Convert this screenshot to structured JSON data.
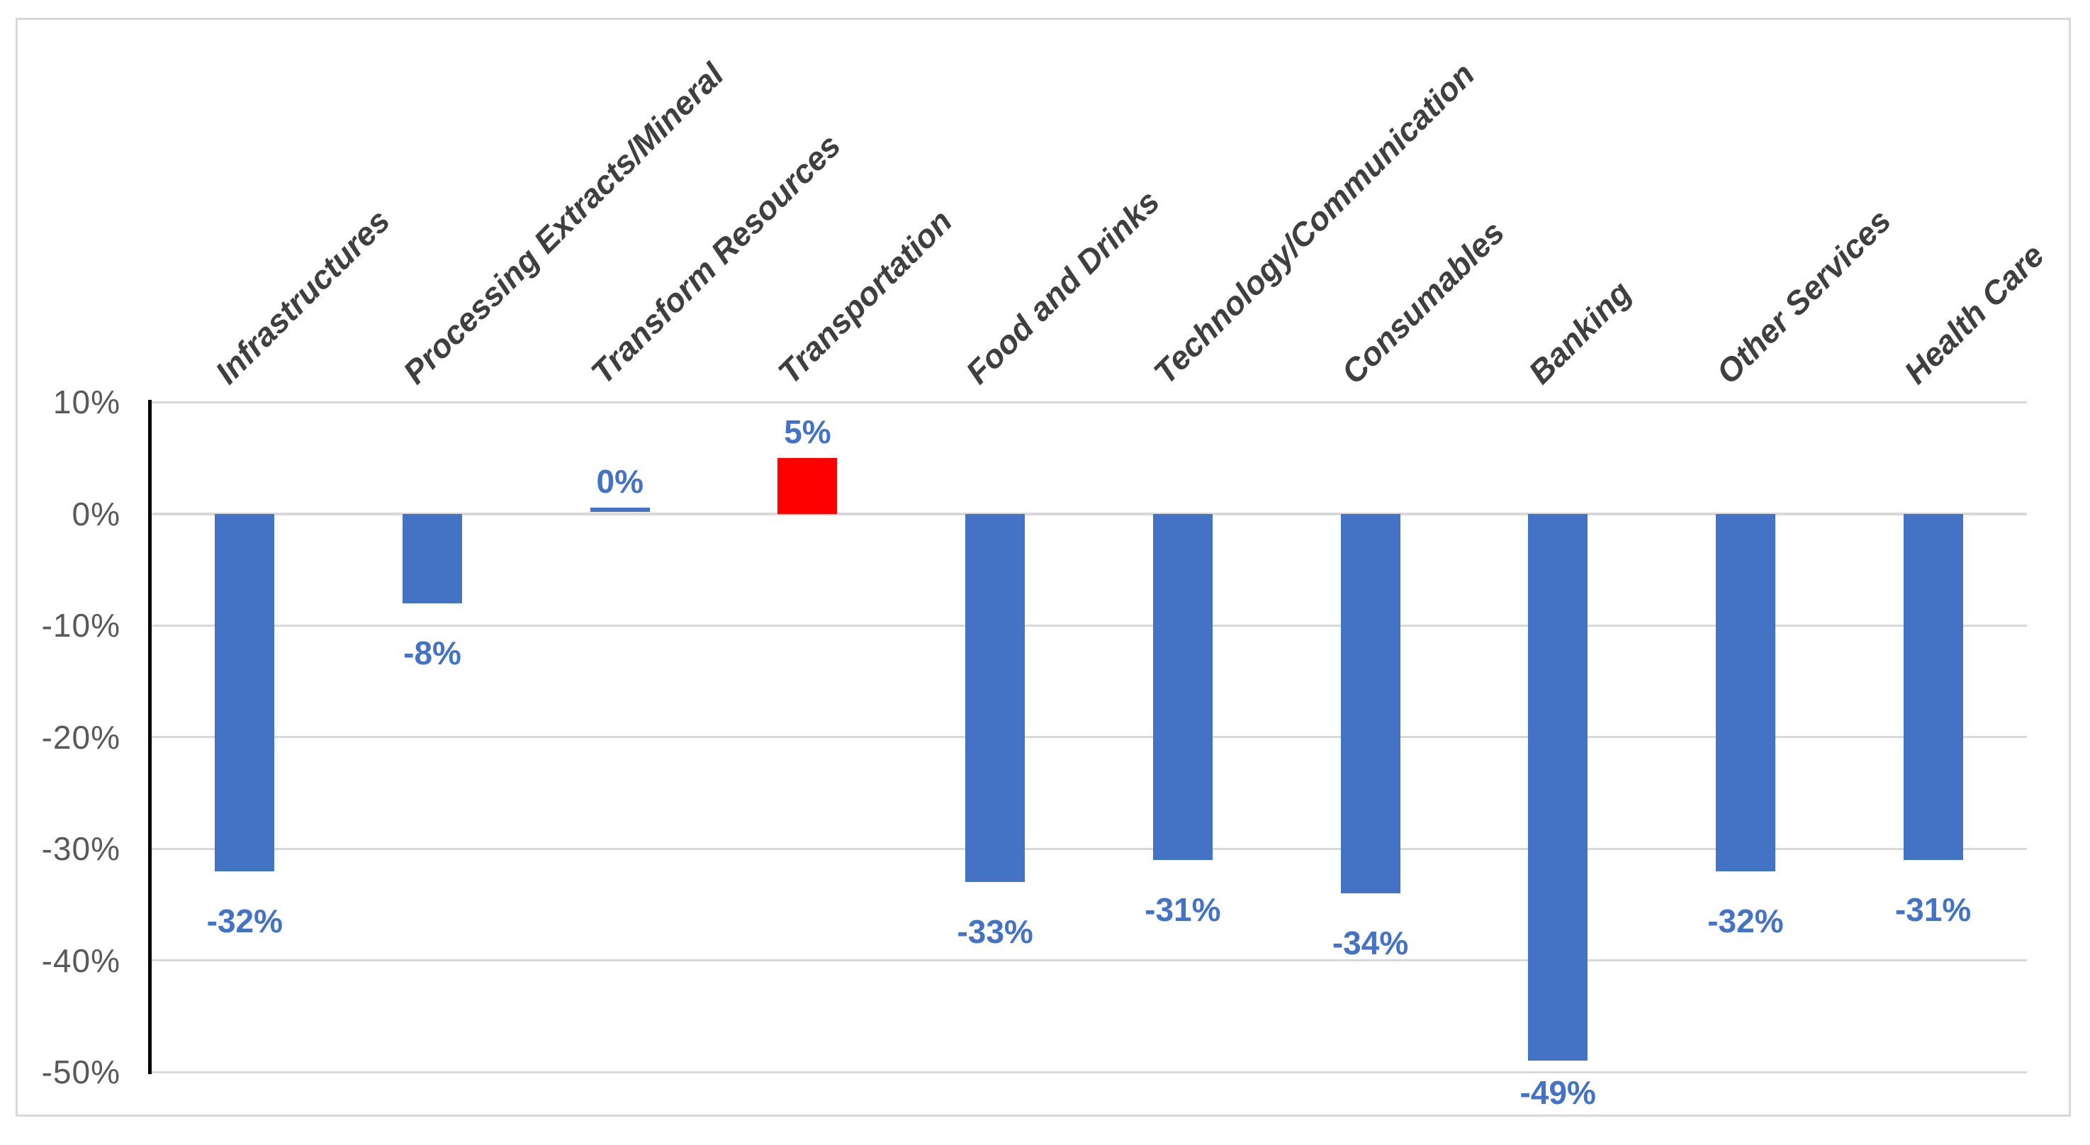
{
  "chart_data": {
    "type": "bar",
    "title": "",
    "xlabel": "",
    "ylabel": "",
    "categories": [
      "Infrastructures",
      "Processing Extracts/Mineral",
      "Transform Resources",
      "Transportation",
      "Food and Drinks",
      "Technology/Communication",
      "Consumables",
      "Banking",
      "Other Services",
      "Health Care"
    ],
    "values": [
      -32,
      -8,
      0,
      5,
      -33,
      -31,
      -34,
      -49,
      -32,
      -31
    ],
    "data_labels": [
      "-32%",
      "-8%",
      "0%",
      "5%",
      "-33%",
      "-31%",
      "-34%",
      "-49%",
      "-32%",
      "-31%"
    ],
    "bar_colors": [
      "#4472C4",
      "#4472C4",
      "#4472C4",
      "#FF0000",
      "#4472C4",
      "#4472C4",
      "#4472C4",
      "#4472C4",
      "#4472C4",
      "#4472C4"
    ],
    "ylim": [
      -50,
      10
    ],
    "ytick_values": [
      10,
      0,
      -10,
      -20,
      -30,
      -40,
      -50
    ],
    "ytick_labels": [
      "10%",
      "0%",
      "-10%",
      "-20%",
      "-30%",
      "-40%",
      "-50%"
    ],
    "grid": "horizontal",
    "legend": "none",
    "colors": {
      "bar_default": "#4472C4",
      "bar_highlight": "#FF0000",
      "data_label": "#4472C4",
      "category_label": "#3f3f3f",
      "tick_label": "#595959",
      "gridline": "#d9d9d9",
      "axis_line": "#000000",
      "frame_border": "#d9d9d9",
      "background": "#ffffff"
    }
  }
}
